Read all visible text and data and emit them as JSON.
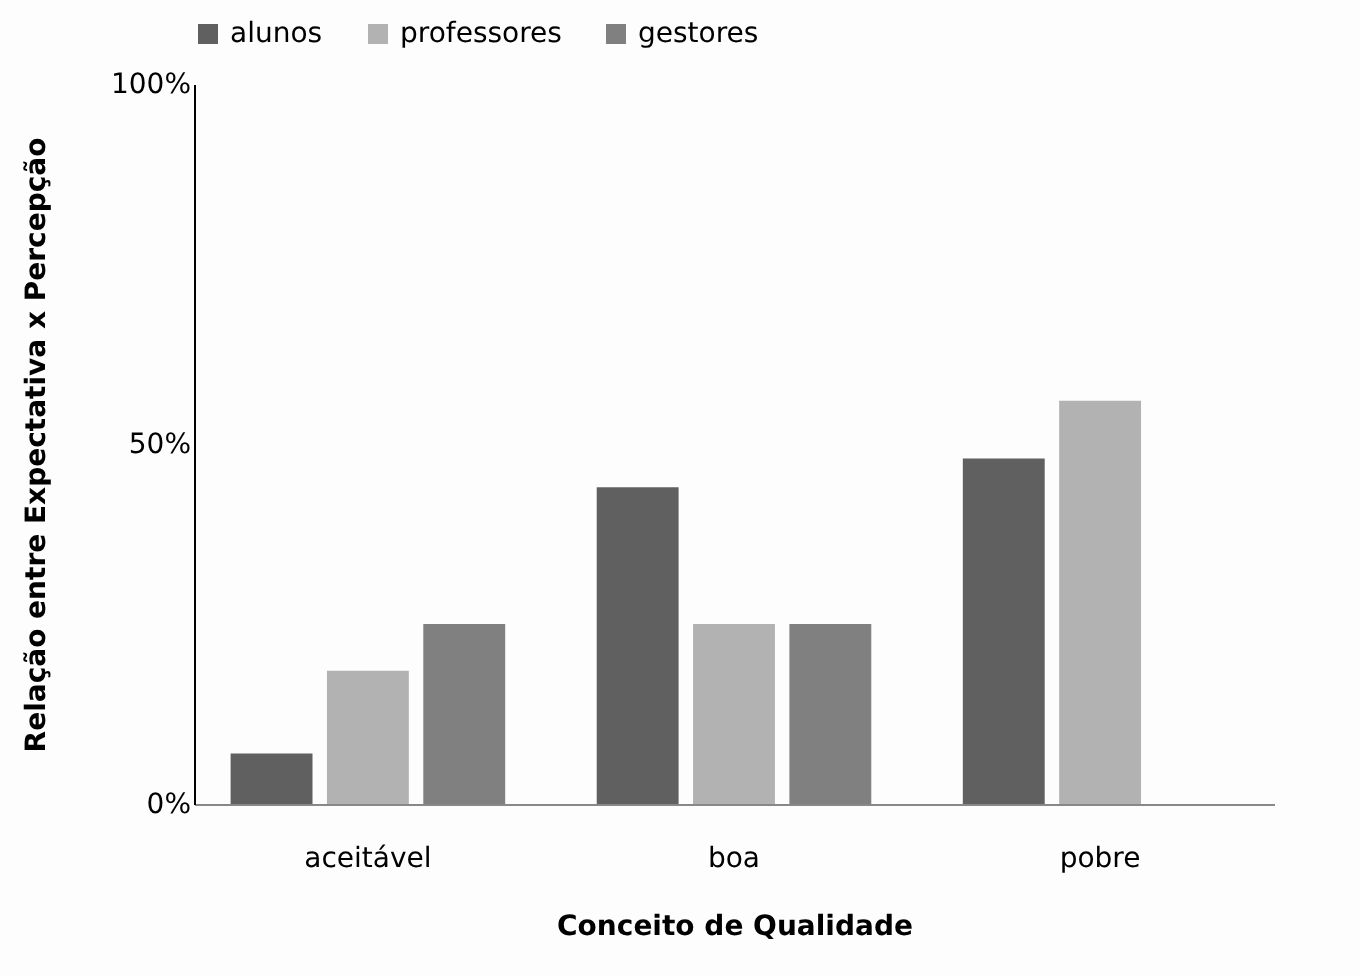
{
  "chart_data": {
    "type": "bar",
    "xlabel": "Conceito de Qualidade",
    "ylabel": "Relação entre Expectativa x Percepção",
    "categories": [
      "aceitável",
      "boa",
      "pobre"
    ],
    "series": [
      {
        "name": "alunos",
        "color": "#606060",
        "values": [
          7,
          44,
          48
        ]
      },
      {
        "name": "professores",
        "color": "#b2b2b2",
        "values": [
          18.5,
          25,
          56
        ]
      },
      {
        "name": "gestores",
        "color": "#808080",
        "values": [
          25,
          25,
          null
        ]
      }
    ],
    "ylim": [
      0,
      100
    ],
    "yticks": [
      {
        "value": 0,
        "label": "0%"
      },
      {
        "value": 50,
        "label": "50%"
      },
      {
        "value": 100,
        "label": "100%"
      }
    ],
    "grid": false,
    "legend": "top"
  }
}
